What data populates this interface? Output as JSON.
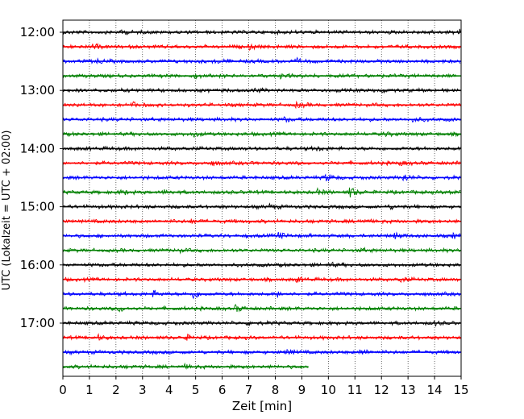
{
  "chart_data": {
    "type": "line",
    "subtype": "helicorder",
    "xlabel": "Zeit  [min]",
    "ylabel": "UTC (Lokalzeit = UTC + 02:00)",
    "xlim": [
      0,
      15
    ],
    "x_ticks": [
      0,
      1,
      2,
      3,
      4,
      5,
      6,
      7,
      8,
      9,
      10,
      11,
      12,
      13,
      14,
      15
    ],
    "y_tick_labels": [
      "12:00",
      "13:00",
      "14:00",
      "15:00",
      "16:00",
      "17:00"
    ],
    "y_tick_rows": [
      0,
      4,
      8,
      12,
      16,
      20
    ],
    "grid": "vertical dotted lines at each minute",
    "colors": [
      "#000000",
      "#ff0000",
      "#0000ff",
      "#008000"
    ],
    "row_interval_minutes": 15,
    "rows": [
      {
        "start": "12:00",
        "color": "#000000",
        "end_min": 15,
        "events": [
          {
            "t": 2.2,
            "a": 0.6
          },
          {
            "t": 13.7,
            "a": 0.7
          },
          {
            "t": 14.9,
            "a": 0.6
          }
        ]
      },
      {
        "start": "12:15",
        "color": "#ff0000",
        "end_min": 15,
        "events": [
          {
            "t": 1.1,
            "a": 0.6
          },
          {
            "t": 7.0,
            "a": 0.5
          }
        ]
      },
      {
        "start": "12:30",
        "color": "#0000ff",
        "end_min": 15,
        "events": [
          {
            "t": 1.3,
            "a": 0.5
          },
          {
            "t": 5.8,
            "a": 0.5
          },
          {
            "t": 8.8,
            "a": 0.5
          }
        ]
      },
      {
        "start": "12:45",
        "color": "#008000",
        "end_min": 15,
        "events": [
          {
            "t": 5.0,
            "a": 0.4
          },
          {
            "t": 8.2,
            "a": 0.4
          }
        ]
      },
      {
        "start": "13:00",
        "color": "#000000",
        "end_min": 15,
        "events": [
          {
            "t": 7.2,
            "a": 0.5
          },
          {
            "t": 12.0,
            "a": 0.4
          }
        ]
      },
      {
        "start": "13:15",
        "color": "#ff0000",
        "end_min": 15,
        "events": [
          {
            "t": 2.6,
            "a": 0.6
          },
          {
            "t": 8.8,
            "a": 0.7
          }
        ]
      },
      {
        "start": "13:30",
        "color": "#0000ff",
        "end_min": 15,
        "events": [
          {
            "t": 8.3,
            "a": 0.6
          },
          {
            "t": 13.2,
            "a": 0.6
          }
        ]
      },
      {
        "start": "13:45",
        "color": "#008000",
        "end_min": 15,
        "events": [
          {
            "t": 4.9,
            "a": 0.7
          },
          {
            "t": 12.1,
            "a": 0.5
          }
        ]
      },
      {
        "start": "14:00",
        "color": "#000000",
        "end_min": 15,
        "events": [
          {
            "t": 9.5,
            "a": 0.6
          }
        ]
      },
      {
        "start": "14:15",
        "color": "#ff0000",
        "end_min": 15,
        "events": [
          {
            "t": 5.6,
            "a": 0.5
          },
          {
            "t": 12.7,
            "a": 0.5
          }
        ]
      },
      {
        "start": "14:30",
        "color": "#0000ff",
        "end_min": 15,
        "events": [
          {
            "t": 9.9,
            "a": 1.0
          },
          {
            "t": 12.8,
            "a": 1.0
          }
        ]
      },
      {
        "start": "14:45",
        "color": "#008000",
        "end_min": 15,
        "events": [
          {
            "t": 2.2,
            "a": 0.6
          },
          {
            "t": 3.8,
            "a": 0.5
          },
          {
            "t": 9.5,
            "a": 0.9
          },
          {
            "t": 10.8,
            "a": 1.4
          },
          {
            "t": 14.6,
            "a": 0.5
          }
        ]
      },
      {
        "start": "15:00",
        "color": "#000000",
        "end_min": 15,
        "events": [
          {
            "t": 7.8,
            "a": 0.6
          },
          {
            "t": 12.3,
            "a": 0.5
          }
        ]
      },
      {
        "start": "15:15",
        "color": "#ff0000",
        "end_min": 15,
        "events": [
          {
            "t": 4.8,
            "a": 0.5
          },
          {
            "t": 11.2,
            "a": 0.5
          }
        ]
      },
      {
        "start": "15:30",
        "color": "#0000ff",
        "end_min": 15,
        "events": [
          {
            "t": 8.1,
            "a": 0.8
          },
          {
            "t": 12.5,
            "a": 0.8
          },
          {
            "t": 14.7,
            "a": 0.6
          }
        ]
      },
      {
        "start": "15:45",
        "color": "#008000",
        "end_min": 15,
        "events": [
          {
            "t": 4.3,
            "a": 0.4
          },
          {
            "t": 11.2,
            "a": 0.4
          }
        ]
      },
      {
        "start": "16:00",
        "color": "#000000",
        "end_min": 15,
        "events": [
          {
            "t": 10.0,
            "a": 0.5
          }
        ]
      },
      {
        "start": "16:15",
        "color": "#ff0000",
        "end_min": 15,
        "events": [
          {
            "t": 8.8,
            "a": 0.6
          },
          {
            "t": 12.7,
            "a": 0.6
          }
        ]
      },
      {
        "start": "16:30",
        "color": "#0000ff",
        "end_min": 15,
        "events": [
          {
            "t": 3.4,
            "a": 0.8
          },
          {
            "t": 4.9,
            "a": 1.2
          },
          {
            "t": 8.1,
            "a": 0.7
          }
        ]
      },
      {
        "start": "16:45",
        "color": "#008000",
        "end_min": 15,
        "events": [
          {
            "t": 2.1,
            "a": 0.8
          },
          {
            "t": 6.5,
            "a": 0.8
          }
        ]
      },
      {
        "start": "17:00",
        "color": "#000000",
        "end_min": 15,
        "events": [
          {
            "t": 7.0,
            "a": 0.4
          },
          {
            "t": 14.0,
            "a": 0.4
          }
        ]
      },
      {
        "start": "17:15",
        "color": "#ff0000",
        "end_min": 15,
        "events": [
          {
            "t": 1.3,
            "a": 0.6
          },
          {
            "t": 4.6,
            "a": 0.7
          }
        ]
      },
      {
        "start": "17:30",
        "color": "#0000ff",
        "end_min": 15,
        "events": [
          {
            "t": 8.4,
            "a": 0.9
          },
          {
            "t": 11.2,
            "a": 0.9
          }
        ]
      },
      {
        "start": "17:45",
        "color": "#008000",
        "end_min": 9.25,
        "events": [
          {
            "t": 4.6,
            "a": 0.4
          }
        ]
      }
    ]
  }
}
